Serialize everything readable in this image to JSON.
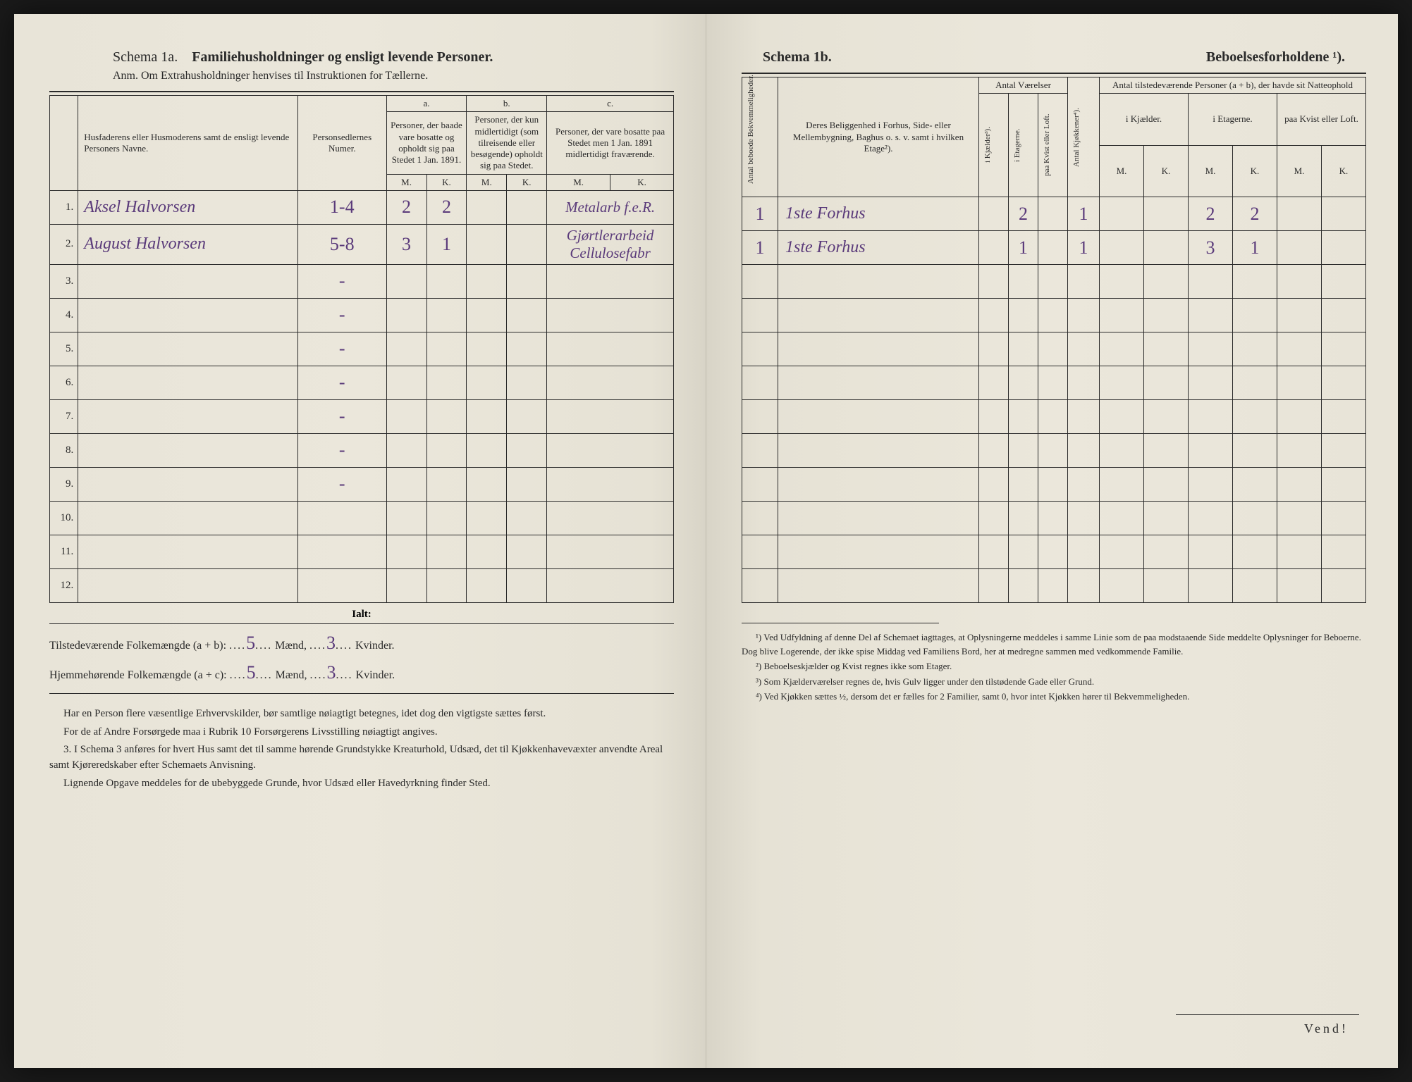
{
  "left": {
    "schema_label": "Schema 1a.",
    "schema_title": "Familiehusholdninger og ensligt levende Personer.",
    "anm": "Anm. Om Extrahusholdninger henvises til Instruktionen for Tællerne.",
    "headers": {
      "col1": "Husfaderens eller Husmoderens samt de ensligt levende Personers Navne.",
      "col2": "Personsedlernes Numer.",
      "a": "a.",
      "a_desc": "Personer, der baade vare bosatte og opholdt sig paa Stedet 1 Jan. 1891.",
      "b": "b.",
      "b_desc": "Personer, der kun midlertidigt (som tilreisende eller besøgende) opholdt sig paa Stedet.",
      "c": "c.",
      "c_desc": "Personer, der vare bosatte paa Stedet men 1 Jan. 1891 midlertidigt fraværende.",
      "m": "M.",
      "k": "K."
    },
    "rows": [
      {
        "n": "1.",
        "name": "Aksel Halvorsen",
        "num": "1-4",
        "am": "2",
        "ak": "2",
        "bm": "",
        "bk": "",
        "cm": "",
        "ck": "",
        "note": "Metalarb f.e.R."
      },
      {
        "n": "2.",
        "name": "August Halvorsen",
        "num": "5-8",
        "am": "3",
        "ak": "1",
        "bm": "",
        "bk": "",
        "cm": "",
        "ck": "",
        "note": "Gjørtlerarbeid Cellulosefabr"
      },
      {
        "n": "3.",
        "name": "",
        "num": "-",
        "am": "",
        "ak": "",
        "bm": "",
        "bk": "",
        "cm": "",
        "ck": "",
        "note": ""
      },
      {
        "n": "4.",
        "name": "",
        "num": "-",
        "am": "",
        "ak": "",
        "bm": "",
        "bk": "",
        "cm": "",
        "ck": "",
        "note": ""
      },
      {
        "n": "5.",
        "name": "",
        "num": "-",
        "am": "",
        "ak": "",
        "bm": "",
        "bk": "",
        "cm": "",
        "ck": "",
        "note": ""
      },
      {
        "n": "6.",
        "name": "",
        "num": "-",
        "am": "",
        "ak": "",
        "bm": "",
        "bk": "",
        "cm": "",
        "ck": "",
        "note": ""
      },
      {
        "n": "7.",
        "name": "",
        "num": "-",
        "am": "",
        "ak": "",
        "bm": "",
        "bk": "",
        "cm": "",
        "ck": "",
        "note": ""
      },
      {
        "n": "8.",
        "name": "",
        "num": "-",
        "am": "",
        "ak": "",
        "bm": "",
        "bk": "",
        "cm": "",
        "ck": "",
        "note": ""
      },
      {
        "n": "9.",
        "name": "",
        "num": "-",
        "am": "",
        "ak": "",
        "bm": "",
        "bk": "",
        "cm": "",
        "ck": "",
        "note": ""
      },
      {
        "n": "10.",
        "name": "",
        "num": "",
        "am": "",
        "ak": "",
        "bm": "",
        "bk": "",
        "cm": "",
        "ck": "",
        "note": ""
      },
      {
        "n": "11.",
        "name": "",
        "num": "",
        "am": "",
        "ak": "",
        "bm": "",
        "bk": "",
        "cm": "",
        "ck": "",
        "note": ""
      },
      {
        "n": "12.",
        "name": "",
        "num": "",
        "am": "",
        "ak": "",
        "bm": "",
        "bk": "",
        "cm": "",
        "ck": "",
        "note": ""
      }
    ],
    "ialt": "Ialt:",
    "summary1_label": "Tilstedeværende Folkemængde (a + b):",
    "summary1_m": "5",
    "summary1_k": "3",
    "summary2_label": "Hjemmehørende Folkemængde (a + c):",
    "summary2_m": "5",
    "summary2_k": "3",
    "maend": "Mænd,",
    "kvinder": "Kvinder.",
    "para1": "Har en Person flere væsentlige Erhvervskilder, bør samtlige nøiagtigt betegnes, idet dog den vigtigste sættes først.",
    "para2": "For de af Andre Forsørgede maa i Rubrik 10 Forsørgerens Livsstilling nøiagtigt angives.",
    "para3_label": "3.",
    "para3": "I Schema 3 anføres for hvert Hus samt det til samme hørende Grundstykke Kreaturhold, Udsæd, det til Kjøkkenhavevæxter anvendte Areal samt Kjøreredskaber efter Schemaets Anvisning.",
    "para4": "Lignende Opgave meddeles for de ubebyggede Grunde, hvor Udsæd eller Havedyrkning finder Sted."
  },
  "right": {
    "schema_label": "Schema 1b.",
    "schema_title": "Beboelsesforholdene ¹).",
    "headers": {
      "v1": "Antal beboede Bekvemmeligheder.",
      "belig": "Deres Beliggenhed i Forhus, Side- eller Mellembygning, Baghus o. s. v. samt i hvilken Etage²).",
      "antal_vaer": "Antal Værelser",
      "v_kj": "i Kjælder³).",
      "v_et": "i Etagerne.",
      "v_kv": "paa Kvist eller Loft.",
      "v_kjok": "Antal Kjøkkener⁴).",
      "tilst": "Antal tilstedeværende Personer (a + b), der havde sit Natteophold",
      "t_kj": "i Kjælder.",
      "t_et": "i Etagerne.",
      "t_kv": "paa Kvist eller Loft.",
      "m": "M.",
      "k": "K."
    },
    "rows": [
      {
        "bek": "1",
        "belig": "1ste Forhus",
        "kj": "",
        "et": "2",
        "kv": "",
        "kjok": "1",
        "kjm": "",
        "kjk": "",
        "etm": "2",
        "etk": "2",
        "kvm": "",
        "kvk": ""
      },
      {
        "bek": "1",
        "belig": "1ste Forhus",
        "kj": "",
        "et": "1",
        "kv": "",
        "kjok": "1",
        "kjm": "",
        "kjk": "",
        "etm": "3",
        "etk": "1",
        "kvm": "",
        "kvk": ""
      },
      {
        "bek": "",
        "belig": "",
        "kj": "",
        "et": "",
        "kv": "",
        "kjok": "",
        "kjm": "",
        "kjk": "",
        "etm": "",
        "etk": "",
        "kvm": "",
        "kvk": ""
      },
      {
        "bek": "",
        "belig": "",
        "kj": "",
        "et": "",
        "kv": "",
        "kjok": "",
        "kjm": "",
        "kjk": "",
        "etm": "",
        "etk": "",
        "kvm": "",
        "kvk": ""
      },
      {
        "bek": "",
        "belig": "",
        "kj": "",
        "et": "",
        "kv": "",
        "kjok": "",
        "kjm": "",
        "kjk": "",
        "etm": "",
        "etk": "",
        "kvm": "",
        "kvk": ""
      },
      {
        "bek": "",
        "belig": "",
        "kj": "",
        "et": "",
        "kv": "",
        "kjok": "",
        "kjm": "",
        "kjk": "",
        "etm": "",
        "etk": "",
        "kvm": "",
        "kvk": ""
      },
      {
        "bek": "",
        "belig": "",
        "kj": "",
        "et": "",
        "kv": "",
        "kjok": "",
        "kjm": "",
        "kjk": "",
        "etm": "",
        "etk": "",
        "kvm": "",
        "kvk": ""
      },
      {
        "bek": "",
        "belig": "",
        "kj": "",
        "et": "",
        "kv": "",
        "kjok": "",
        "kjm": "",
        "kjk": "",
        "etm": "",
        "etk": "",
        "kvm": "",
        "kvk": ""
      },
      {
        "bek": "",
        "belig": "",
        "kj": "",
        "et": "",
        "kv": "",
        "kjok": "",
        "kjm": "",
        "kjk": "",
        "etm": "",
        "etk": "",
        "kvm": "",
        "kvk": ""
      },
      {
        "bek": "",
        "belig": "",
        "kj": "",
        "et": "",
        "kv": "",
        "kjok": "",
        "kjm": "",
        "kjk": "",
        "etm": "",
        "etk": "",
        "kvm": "",
        "kvk": ""
      },
      {
        "bek": "",
        "belig": "",
        "kj": "",
        "et": "",
        "kv": "",
        "kjok": "",
        "kjm": "",
        "kjk": "",
        "etm": "",
        "etk": "",
        "kvm": "",
        "kvk": ""
      },
      {
        "bek": "",
        "belig": "",
        "kj": "",
        "et": "",
        "kv": "",
        "kjok": "",
        "kjm": "",
        "kjk": "",
        "etm": "",
        "etk": "",
        "kvm": "",
        "kvk": ""
      }
    ],
    "fn1": "¹) Ved Udfyldning af denne Del af Schemaet iagttages, at Oplysningerne meddeles i samme Linie som de paa modstaaende Side meddelte Oplysninger for Beboerne. Dog blive Logerende, der ikke spise Middag ved Familiens Bord, her at medregne sammen med vedkommende Familie.",
    "fn2": "²) Beboelseskjælder og Kvist regnes ikke som Etager.",
    "fn3": "³) Som Kjælderværelser regnes de, hvis Gulv ligger under den tilstødende Gade eller Grund.",
    "fn4": "⁴) Ved Kjøkken sættes ½, dersom det er fælles for 2 Familier, samt 0, hvor intet Kjøkken hører til Bekvemmeligheden.",
    "vend": "Vend!"
  }
}
